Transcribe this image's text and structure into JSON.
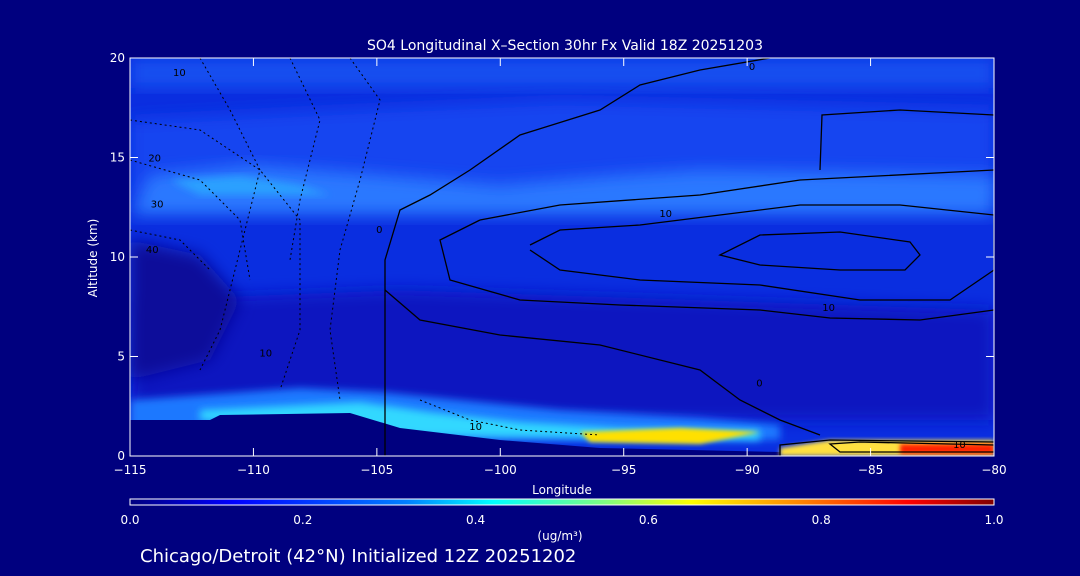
{
  "chart_data": {
    "type": "heatmap",
    "title": "SO4 Longitudinal X–Section 30hr  Fx Valid 18Z 20251203",
    "xlabel": "Longitude",
    "ylabel": "Altitude (km)",
    "xlim": [
      -115,
      -80
    ],
    "ylim": [
      0,
      20
    ],
    "x_ticks": [
      -115,
      -110,
      -105,
      -100,
      -95,
      -90,
      -85,
      -80
    ],
    "x_tick_labels": [
      "−115",
      "−110",
      "−105",
      "−100",
      "−95",
      "−90",
      "−85",
      "−80"
    ],
    "y_ticks": [
      0,
      5,
      10,
      15,
      20
    ],
    "y_tick_labels": [
      "0",
      "5",
      "10",
      "15",
      "20"
    ],
    "colorbar": {
      "label": "(ug/m³)",
      "range": [
        0.0,
        1.0
      ],
      "ticks": [
        0.0,
        0.2,
        0.4,
        0.6,
        0.8,
        1.0
      ],
      "tick_labels": [
        "0.0",
        "0.2",
        "0.4",
        "0.6",
        "0.8",
        "1.0"
      ],
      "colors": [
        "#00007f",
        "#0000ff",
        "#0080ff",
        "#00ffff",
        "#80ff80",
        "#ffff00",
        "#ff8000",
        "#ff0000",
        "#7f0000"
      ]
    },
    "concentration_features": [
      {
        "name": "background aloft",
        "lon_range": [
          -115,
          -80
        ],
        "alt_range": [
          4,
          20
        ],
        "value": 0.15
      },
      {
        "name": "upper band",
        "lon_range": [
          -114,
          -100
        ],
        "alt_range": [
          12,
          15
        ],
        "value": 0.35
      },
      {
        "name": "western mid-level low",
        "lon_range": [
          -115,
          -105
        ],
        "alt_range": [
          3,
          12
        ],
        "value": 0.05
      },
      {
        "name": "boundary layer band",
        "lon_range": [
          -115,
          -88
        ],
        "alt_range": [
          0.5,
          3
        ],
        "value": 0.4
      },
      {
        "name": "surface plume",
        "lon_range": [
          -98,
          -90
        ],
        "alt_range": [
          0.5,
          1.5
        ],
        "value": 0.6
      },
      {
        "name": "eastern surface maximum",
        "lon_range": [
          -87,
          -80
        ],
        "alt_range": [
          0,
          1
        ],
        "value": 0.9
      }
    ],
    "contour_labels": [
      {
        "text": "0",
        "lon": -89.8,
        "alt": 19.6
      },
      {
        "text": "10",
        "lon": -113.0,
        "alt": 19.3
      },
      {
        "text": "20",
        "lon": -114.0,
        "alt": 15.0
      },
      {
        "text": "30",
        "lon": -113.9,
        "alt": 12.7
      },
      {
        "text": "40",
        "lon": -114.1,
        "alt": 10.4
      },
      {
        "text": "10",
        "lon": -109.5,
        "alt": 5.2
      },
      {
        "text": "0",
        "lon": -104.9,
        "alt": 11.4
      },
      {
        "text": "10",
        "lon": -93.3,
        "alt": 12.2
      },
      {
        "text": "10",
        "lon": -86.7,
        "alt": 7.5
      },
      {
        "text": "0",
        "lon": -89.5,
        "alt": 3.7
      },
      {
        "text": "10",
        "lon": -101.0,
        "alt": 1.5
      },
      {
        "text": "10",
        "lon": -81.4,
        "alt": 0.6
      }
    ]
  },
  "footer": "Chicago/Detroit (42°N) Initialized 12Z 20251202",
  "colors": {
    "background": "#00007f",
    "text": "#ffffff",
    "contour": "#000000"
  }
}
